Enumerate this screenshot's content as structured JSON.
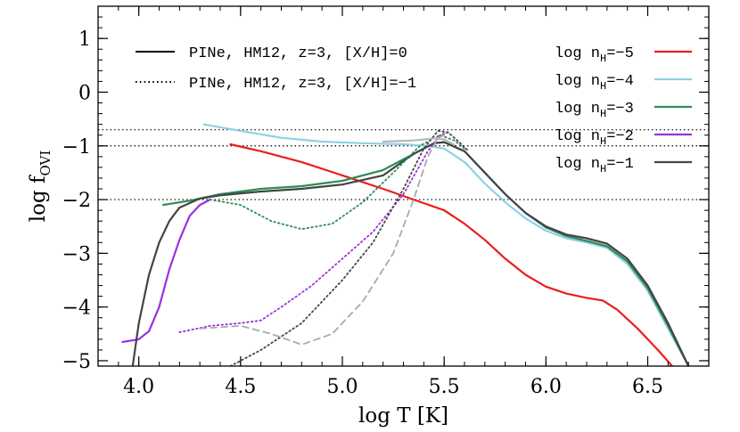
{
  "chart_data": {
    "type": "line",
    "xlabel": "log T [K]",
    "ylabel": {
      "main": "log f",
      "sub": "OVI"
    },
    "xlim": [
      3.8,
      6.8
    ],
    "ylim": [
      -5.1,
      1.6
    ],
    "xticks": [
      {
        "value": 4.0,
        "label": "4.0"
      },
      {
        "value": 4.5,
        "label": "4.5"
      },
      {
        "value": 5.0,
        "label": "5.0"
      },
      {
        "value": 5.5,
        "label": "5.5"
      },
      {
        "value": 6.0,
        "label": "6.0"
      },
      {
        "value": 6.5,
        "label": "6.5"
      }
    ],
    "yticks": [
      {
        "value": 1,
        "label": "1"
      },
      {
        "value": 0,
        "label": "0"
      },
      {
        "value": -1,
        "label": "−1"
      },
      {
        "value": -2,
        "label": "−2"
      },
      {
        "value": -3,
        "label": "−3"
      },
      {
        "value": -4,
        "label": "−4"
      },
      {
        "value": -5,
        "label": "−5"
      }
    ],
    "hlines": [
      -0.7,
      -1.0,
      -2.0
    ],
    "style_legend": [
      {
        "label": "PINe, HM12, z=3, [X/H]=0",
        "dash": "solid"
      },
      {
        "label": "PINe, HM12, z=3, [X/H]=−1",
        "dash": "dotted"
      }
    ],
    "series": [
      {
        "legend_prefix": "log n",
        "legend_sub": "H",
        "legend_suffix": "=−5",
        "color": "#ee1c1c",
        "dash": "solid",
        "points": [
          [
            4.45,
            -0.97
          ],
          [
            4.6,
            -1.1
          ],
          [
            4.8,
            -1.3
          ],
          [
            5.0,
            -1.55
          ],
          [
            5.2,
            -1.8
          ],
          [
            5.35,
            -2.0
          ],
          [
            5.5,
            -2.2
          ],
          [
            5.6,
            -2.45
          ],
          [
            5.7,
            -2.75
          ],
          [
            5.8,
            -3.1
          ],
          [
            5.9,
            -3.4
          ],
          [
            6.0,
            -3.62
          ],
          [
            6.1,
            -3.75
          ],
          [
            6.2,
            -3.83
          ],
          [
            6.28,
            -3.88
          ],
          [
            6.35,
            -4.05
          ],
          [
            6.45,
            -4.4
          ],
          [
            6.55,
            -4.8
          ],
          [
            6.62,
            -5.1
          ]
        ]
      },
      {
        "legend_prefix": "log n",
        "legend_sub": "H",
        "legend_suffix": "=−4",
        "color": "#8fd0e6",
        "dash": "solid",
        "points": [
          [
            4.32,
            -0.6
          ],
          [
            4.5,
            -0.72
          ],
          [
            4.7,
            -0.85
          ],
          [
            4.9,
            -0.92
          ],
          [
            5.1,
            -0.95
          ],
          [
            5.3,
            -0.97
          ],
          [
            5.42,
            -1.0
          ],
          [
            5.5,
            -1.05
          ],
          [
            5.6,
            -1.3
          ],
          [
            5.7,
            -1.7
          ],
          [
            5.8,
            -2.05
          ],
          [
            5.9,
            -2.35
          ],
          [
            6.0,
            -2.58
          ],
          [
            6.1,
            -2.72
          ],
          [
            6.2,
            -2.8
          ],
          [
            6.3,
            -2.9
          ],
          [
            6.4,
            -3.2
          ],
          [
            6.5,
            -3.7
          ],
          [
            6.6,
            -4.4
          ],
          [
            6.7,
            -5.1
          ]
        ]
      },
      {
        "legend_prefix": "log n",
        "legend_sub": "H",
        "legend_suffix": "=−3",
        "color": "#2e8b57",
        "dash": "solid",
        "points": [
          [
            4.12,
            -2.1
          ],
          [
            4.25,
            -2.02
          ],
          [
            4.4,
            -1.9
          ],
          [
            4.6,
            -1.8
          ],
          [
            4.8,
            -1.75
          ],
          [
            5.0,
            -1.65
          ],
          [
            5.2,
            -1.45
          ],
          [
            5.35,
            -1.15
          ],
          [
            5.45,
            -0.95
          ],
          [
            5.5,
            -0.93
          ],
          [
            5.6,
            -1.1
          ],
          [
            5.7,
            -1.5
          ],
          [
            5.8,
            -1.9
          ],
          [
            5.9,
            -2.25
          ],
          [
            6.0,
            -2.52
          ],
          [
            6.1,
            -2.68
          ],
          [
            6.2,
            -2.77
          ],
          [
            6.3,
            -2.87
          ],
          [
            6.4,
            -3.15
          ],
          [
            6.5,
            -3.65
          ],
          [
            6.6,
            -4.35
          ],
          [
            6.7,
            -5.1
          ]
        ]
      },
      {
        "legend_prefix": "log n",
        "legend_sub": "H",
        "legend_suffix": "=−2",
        "color": "#9b30e0",
        "dash": "solid",
        "points": [
          [
            3.92,
            -4.65
          ],
          [
            4.0,
            -4.6
          ],
          [
            4.05,
            -4.45
          ],
          [
            4.1,
            -4.0
          ],
          [
            4.15,
            -3.3
          ],
          [
            4.2,
            -2.75
          ],
          [
            4.25,
            -2.3
          ],
          [
            4.3,
            -2.1
          ],
          [
            4.35,
            -2.0
          ]
        ]
      },
      {
        "legend_prefix": "log n",
        "legend_sub": "H",
        "legend_suffix": "=−1",
        "color": "#444444",
        "dash": "solid",
        "points": [
          [
            3.97,
            -5.1
          ],
          [
            4.0,
            -4.3
          ],
          [
            4.05,
            -3.4
          ],
          [
            4.1,
            -2.8
          ],
          [
            4.15,
            -2.4
          ],
          [
            4.2,
            -2.15
          ],
          [
            4.3,
            -1.98
          ],
          [
            4.4,
            -1.92
          ],
          [
            4.6,
            -1.85
          ],
          [
            4.8,
            -1.8
          ],
          [
            5.0,
            -1.72
          ],
          [
            5.2,
            -1.55
          ],
          [
            5.35,
            -1.15
          ],
          [
            5.45,
            -0.95
          ],
          [
            5.5,
            -0.93
          ],
          [
            5.6,
            -1.1
          ],
          [
            5.7,
            -1.5
          ],
          [
            5.8,
            -1.9
          ],
          [
            5.9,
            -2.25
          ],
          [
            6.0,
            -2.5
          ],
          [
            6.1,
            -2.65
          ],
          [
            6.2,
            -2.72
          ],
          [
            6.3,
            -2.82
          ],
          [
            6.4,
            -3.1
          ],
          [
            6.5,
            -3.6
          ],
          [
            6.6,
            -4.3
          ],
          [
            6.7,
            -5.1
          ]
        ]
      },
      {
        "color": "#2e8b57",
        "dash": "dotted",
        "points": [
          [
            4.35,
            -2.0
          ],
          [
            4.5,
            -2.1
          ],
          [
            4.65,
            -2.4
          ],
          [
            4.8,
            -2.55
          ],
          [
            4.95,
            -2.45
          ],
          [
            5.1,
            -2.05
          ],
          [
            5.25,
            -1.5
          ],
          [
            5.38,
            -1.0
          ],
          [
            5.48,
            -0.8
          ],
          [
            5.55,
            -0.9
          ],
          [
            5.6,
            -1.05
          ]
        ]
      },
      {
        "color": "#9b30e0",
        "dash": "dotted",
        "points": [
          [
            4.2,
            -4.47
          ],
          [
            4.35,
            -4.35
          ],
          [
            4.5,
            -4.3
          ],
          [
            4.6,
            -4.25
          ],
          [
            4.7,
            -4.0
          ],
          [
            4.85,
            -3.6
          ],
          [
            5.0,
            -3.1
          ],
          [
            5.15,
            -2.6
          ],
          [
            5.3,
            -1.9
          ],
          [
            5.42,
            -1.1
          ],
          [
            5.48,
            -0.8
          ],
          [
            5.52,
            -0.75
          ]
        ]
      },
      {
        "color": "#444444",
        "dash": "dotted",
        "points": [
          [
            4.45,
            -5.1
          ],
          [
            4.6,
            -4.8
          ],
          [
            4.8,
            -4.3
          ],
          [
            5.0,
            -3.5
          ],
          [
            5.15,
            -2.8
          ],
          [
            5.3,
            -1.8
          ],
          [
            5.4,
            -1.05
          ],
          [
            5.47,
            -0.72
          ],
          [
            5.52,
            -0.75
          ],
          [
            5.58,
            -0.95
          ],
          [
            5.62,
            -1.1
          ]
        ]
      },
      {
        "color": "#aaaaaa",
        "dash": "dashed",
        "points": [
          [
            4.3,
            -4.4
          ],
          [
            4.5,
            -4.35
          ],
          [
            4.65,
            -4.5
          ],
          [
            4.8,
            -4.7
          ],
          [
            4.95,
            -4.5
          ],
          [
            5.1,
            -3.9
          ],
          [
            5.25,
            -3.0
          ],
          [
            5.35,
            -2.0
          ],
          [
            5.42,
            -1.2
          ],
          [
            5.47,
            -0.85
          ],
          [
            5.5,
            -0.8
          ]
        ]
      },
      {
        "color": "#b8b8b8",
        "dash": "solid",
        "points": [
          [
            5.2,
            -0.92
          ],
          [
            5.35,
            -0.9
          ],
          [
            5.45,
            -0.86
          ],
          [
            5.5,
            -0.88
          ],
          [
            5.55,
            -0.98
          ]
        ]
      }
    ]
  }
}
